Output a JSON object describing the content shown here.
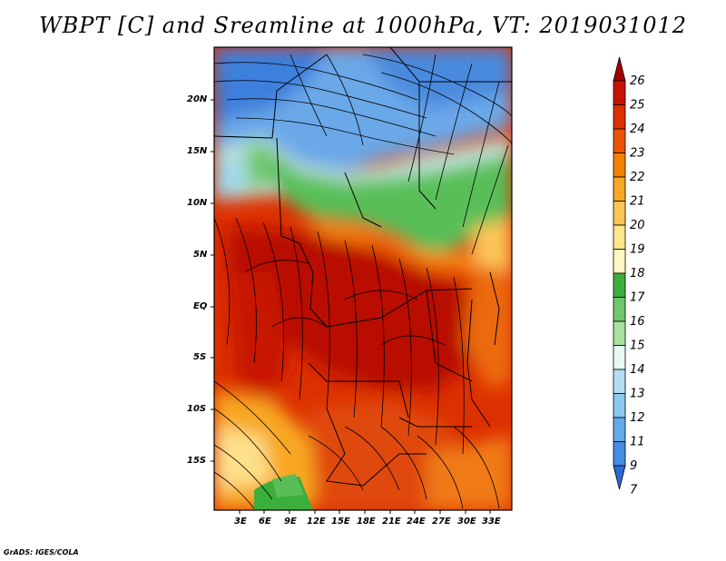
{
  "title": "WBPT [C] and Sreamline at 1000hPa, VT: 2019031012",
  "credit": "GrADS: IGES/COLA",
  "map": {
    "lat_labels": [
      "20N",
      "15N",
      "10N",
      "5N",
      "EQ",
      "5S",
      "10S",
      "15S"
    ],
    "lon_labels": [
      "3E",
      "6E",
      "9E",
      "12E",
      "15E",
      "18E",
      "21E",
      "24E",
      "27E",
      "30E",
      "33E"
    ]
  },
  "colorbar": {
    "labels": [
      "26",
      "25",
      "24",
      "23",
      "22",
      "21",
      "20",
      "19",
      "18",
      "17",
      "16",
      "15",
      "14",
      "13",
      "12",
      "11",
      "9",
      "7"
    ],
    "colors": [
      "#a50000",
      "#c81200",
      "#dd3000",
      "#ec5200",
      "#f58200",
      "#f8a724",
      "#fbc556",
      "#fde68a",
      "#fff8c2",
      "#3cae3c",
      "#6ec86a",
      "#a8e0a0",
      "#e8f8f4",
      "#b4dcf4",
      "#8cc8f0",
      "#64aaea",
      "#468ce0",
      "#2a6ad6"
    ]
  }
}
